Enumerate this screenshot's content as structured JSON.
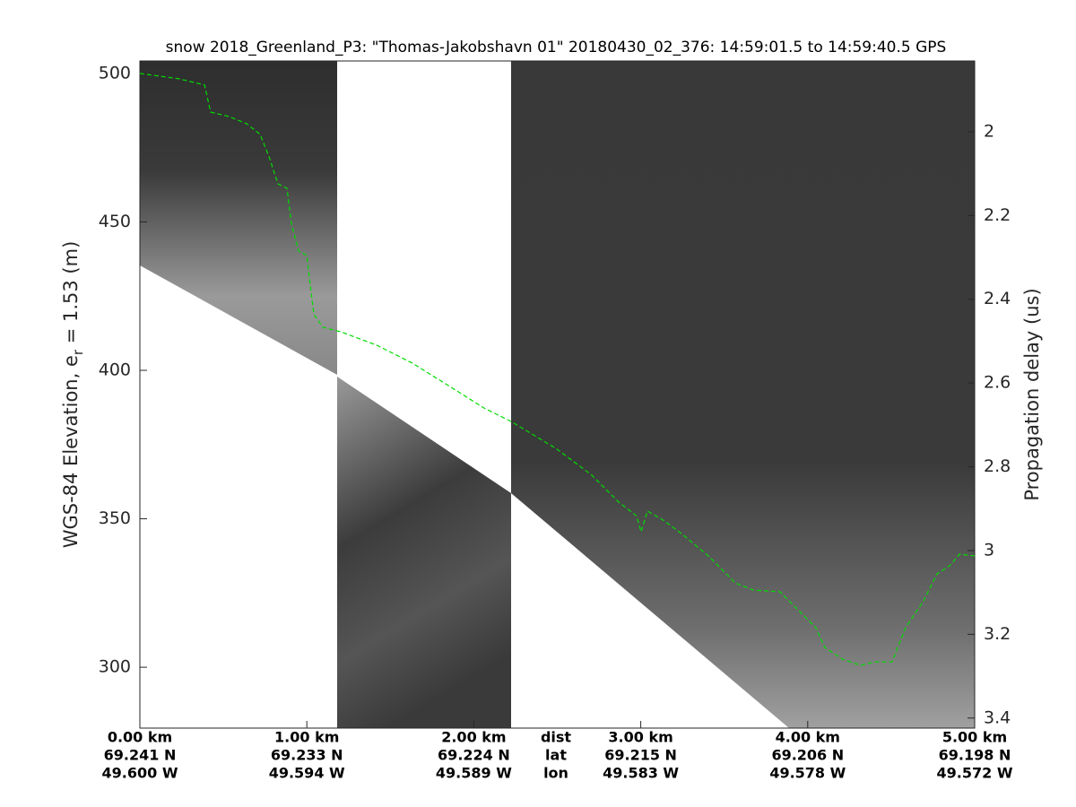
{
  "chart_data": {
    "type": "line",
    "title": "snow 2018_Greenland_P3: \"Thomas-Jakobshavn 01\"  20180430_02_376: 14:59:01.5 to 14:59:40.5 GPS",
    "ylabel": "WGS-84 Elevation, e",
    "ylabel_sub": "r",
    "ylabel_end": " = 1.53 (m)",
    "y2label": "Propagation delay (us)",
    "x_row_labels": [
      "dist",
      "lat",
      "lon"
    ],
    "xlim": [
      0,
      5
    ],
    "xticks": [
      {
        "value": 0,
        "label": "0.00 km"
      },
      {
        "value": 1,
        "label": "1.00 km"
      },
      {
        "value": 2,
        "label": "2.00 km"
      },
      {
        "value": 3,
        "label": "3.00 km"
      },
      {
        "value": 4,
        "label": "4.00 km"
      },
      {
        "value": 5,
        "label": "5.00 km"
      }
    ],
    "lat_labels": [
      "69.241 N",
      "69.233 N",
      "69.224 N",
      "69.215 N",
      "69.206 N",
      "69.198 N"
    ],
    "lon_labels": [
      "49.600 W",
      "49.594 W",
      "49.589 W",
      "49.583 W",
      "49.578 W",
      "49.572 W"
    ],
    "ylim": [
      279.5,
      504.2
    ],
    "yticks": [
      300,
      350,
      400,
      450,
      500
    ],
    "y2lim": [
      3.424,
      1.831
    ],
    "y2ticks": [
      2,
      2.2,
      2.4,
      2.6,
      2.8,
      3,
      3.2,
      3.4
    ],
    "x": [
      0,
      0.236,
      0.387,
      0.424,
      0.532,
      0.639,
      0.72,
      0.774,
      0.827,
      0.881,
      0.908,
      0.951,
      1.0,
      1.015,
      1.042,
      1.096,
      1.203,
      1.418,
      1.633,
      1.847,
      2.062,
      2.223,
      2.492,
      2.707,
      2.868,
      2.975,
      3.002,
      3.04,
      3.136,
      3.244,
      3.405,
      3.566,
      3.673,
      3.834,
      3.942,
      4.049,
      4.103,
      4.21,
      4.318,
      4.398,
      4.505,
      4.586,
      4.694,
      4.774,
      4.855,
      4.909,
      5.0
    ],
    "series": [
      {
        "color": "#00dd00",
        "dashed": true,
        "values": [
          500,
          498.2,
          496.1,
          487,
          485.5,
          483.1,
          479.5,
          471.9,
          462.8,
          461.3,
          449.2,
          440.2,
          438.7,
          431.1,
          419,
          414.5,
          413,
          408.5,
          402.4,
          394.9,
          387.3,
          382.8,
          373.7,
          364.7,
          355.6,
          351,
          345.6,
          352.6,
          349.5,
          345,
          337.5,
          328.4,
          326,
          325.4,
          319.3,
          313.3,
          306.6,
          302.7,
          300.6,
          301.8,
          301.8,
          313.3,
          322.4,
          331.4,
          334.4,
          338.1,
          337.5
        ]
      }
    ]
  }
}
